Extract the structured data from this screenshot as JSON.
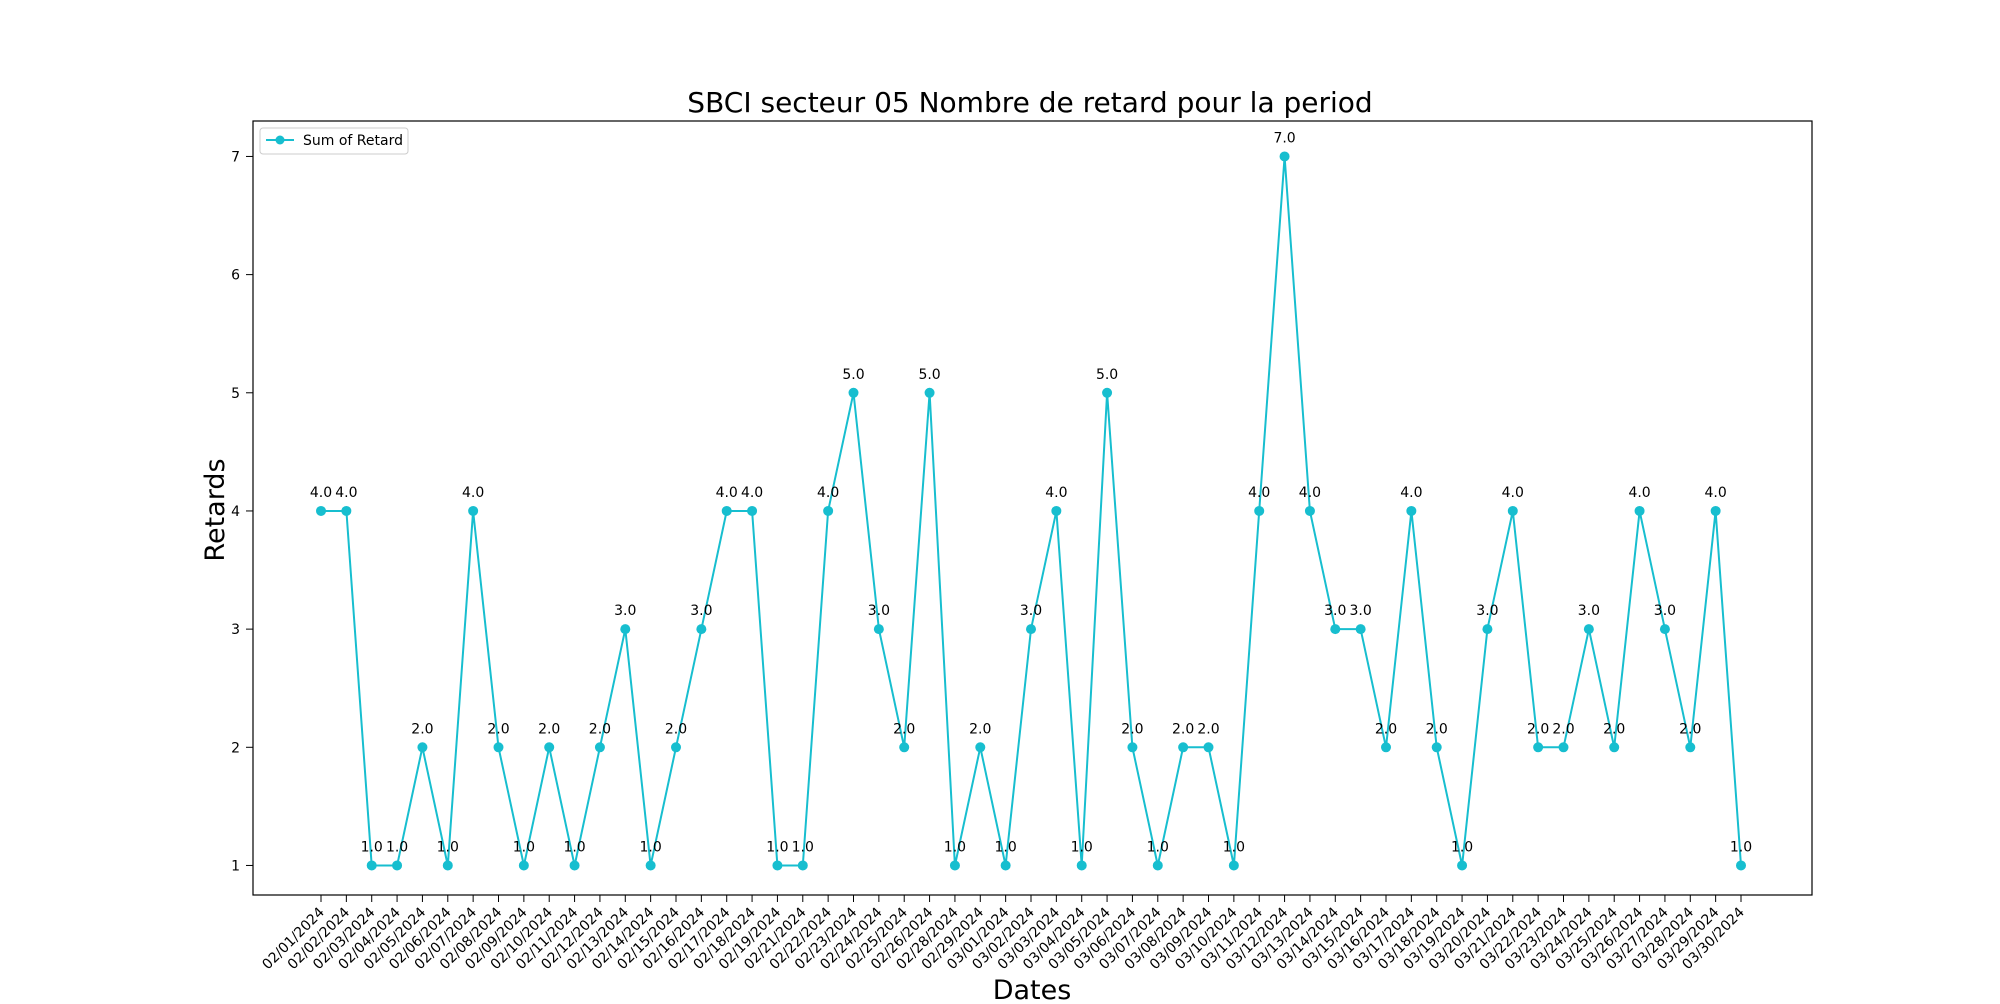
{
  "chart_data": {
    "type": "line",
    "title": "SBCI secteur 05 Nombre de retard pour la period",
    "xlabel": "Dates",
    "ylabel": "Retards",
    "ylim": [
      0.75,
      7.3
    ],
    "yticks": [
      "1",
      "2",
      "3",
      "4",
      "5",
      "6",
      "7"
    ],
    "grid": false,
    "legend_position": "upper-left",
    "categories": [
      "02/01/2024",
      "02/02/2024",
      "02/03/2024",
      "02/04/2024",
      "02/05/2024",
      "02/06/2024",
      "02/07/2024",
      "02/08/2024",
      "02/09/2024",
      "02/10/2024",
      "02/11/2024",
      "02/12/2024",
      "02/13/2024",
      "02/14/2024",
      "02/15/2024",
      "02/16/2024",
      "02/17/2024",
      "02/18/2024",
      "02/19/2024",
      "02/21/2024",
      "02/22/2024",
      "02/23/2024",
      "02/24/2024",
      "02/25/2024",
      "02/26/2024",
      "02/28/2024",
      "02/29/2024",
      "03/01/2024",
      "03/02/2024",
      "03/03/2024",
      "03/04/2024",
      "03/05/2024",
      "03/06/2024",
      "03/07/2024",
      "03/08/2024",
      "03/09/2024",
      "03/10/2024",
      "03/11/2024",
      "03/12/2024",
      "03/13/2024",
      "03/14/2024",
      "03/15/2024",
      "03/16/2024",
      "03/17/2024",
      "03/18/2024",
      "03/19/2024",
      "03/20/2024",
      "03/21/2024",
      "03/22/2024",
      "03/23/2024",
      "03/24/2024",
      "03/25/2024",
      "03/26/2024",
      "03/27/2024",
      "03/28/2024",
      "03/29/2024",
      "03/30/2024"
    ],
    "series": [
      {
        "name": "Sum of Retard",
        "color": "#17BECF",
        "marker": "circle",
        "values": [
          4,
          4,
          1,
          1,
          2,
          1,
          4,
          2,
          1,
          2,
          1,
          2,
          3,
          1,
          2,
          3,
          4,
          4,
          1,
          1,
          4,
          5,
          3,
          2,
          5,
          1,
          2,
          1,
          3,
          4,
          1,
          5,
          2,
          1,
          2,
          2,
          1,
          4,
          7,
          4,
          3,
          3,
          2,
          4,
          2,
          1,
          3,
          4,
          2,
          2,
          3,
          2,
          4,
          3,
          2,
          4,
          1
        ],
        "data_labels": [
          "4.0",
          "4.0",
          "1.0",
          "1.0",
          "2.0",
          "1.0",
          "4.0",
          "2.0",
          "1.0",
          "2.0",
          "1.0",
          "2.0",
          "3.0",
          "1.0",
          "2.0",
          "3.0",
          "4.0",
          "4.0",
          "1.0",
          "1.0",
          "4.0",
          "5.0",
          "3.0",
          "2.0",
          "5.0",
          "1.0",
          "2.0",
          "1.0",
          "3.0",
          "4.0",
          "1.0",
          "5.0",
          "2.0",
          "1.0",
          "2.0",
          "2.0",
          "1.0",
          "4.0",
          "7.0",
          "4.0",
          "3.0",
          "3.0",
          "2.0",
          "4.0",
          "2.0",
          "1.0",
          "3.0",
          "4.0",
          "2.0",
          "2.0",
          "3.0",
          "2.0",
          "4.0",
          "3.0",
          "2.0",
          "4.0",
          "1.0"
        ]
      }
    ]
  }
}
